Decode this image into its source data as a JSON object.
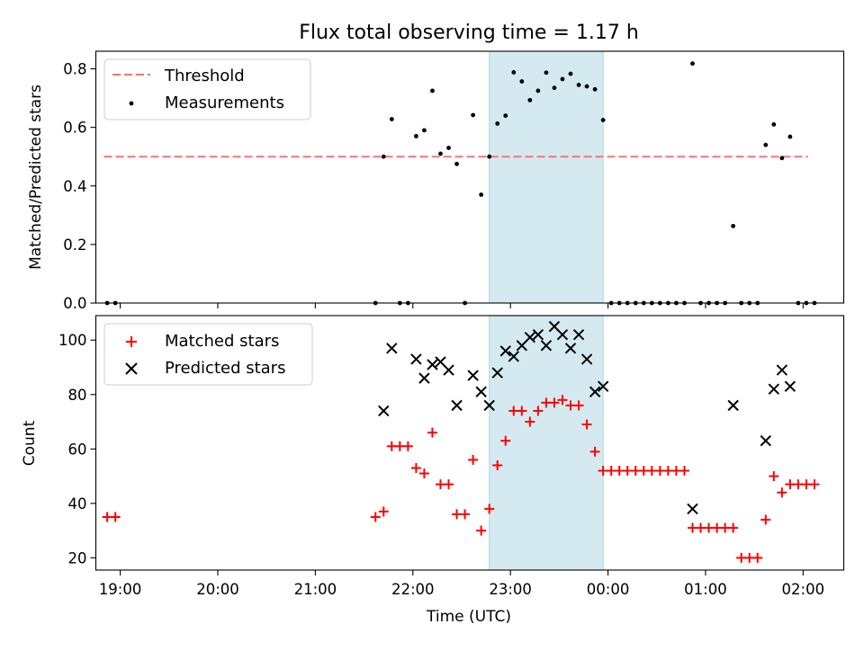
{
  "chart_data": [
    {
      "type": "scatter",
      "title": "Flux total observing time = 1.17 h",
      "xlabel": "",
      "ylabel": "Matched/Predicted stars",
      "xlim": [
        "18:45",
        "02:25"
      ],
      "ylim": [
        0,
        0.86
      ],
      "yticks": [
        "0.0",
        "0.2",
        "0.4",
        "0.6",
        "0.8"
      ],
      "legend_position": "upper-left",
      "threshold": {
        "name": "Threshold",
        "value": 0.5,
        "x_range": [
          "18:50",
          "02:03"
        ],
        "color": "#ff7070"
      },
      "highlight_span": {
        "x_range": [
          "22:47",
          "23:57"
        ],
        "color": "#d4eaf0"
      },
      "series": [
        {
          "name": "Measurements",
          "color": "#000000",
          "points": [
            [
              "18:52",
              0
            ],
            [
              "18:57",
              0
            ],
            [
              "21:37",
              0
            ],
            [
              "21:42",
              0.5
            ],
            [
              "21:47",
              0.628
            ],
            [
              "21:52",
              0
            ],
            [
              "21:57",
              0
            ],
            [
              "22:02",
              0.57
            ],
            [
              "22:07",
              0.59
            ],
            [
              "22:12",
              0.725
            ],
            [
              "22:17",
              0.51
            ],
            [
              "22:22",
              0.53
            ],
            [
              "22:27",
              0.475
            ],
            [
              "22:32",
              0
            ],
            [
              "22:37",
              0.642
            ],
            [
              "22:42",
              0.37
            ],
            [
              "22:47",
              0.5
            ],
            [
              "22:52",
              0.613
            ],
            [
              "22:57",
              0.64
            ],
            [
              "23:02",
              0.788
            ],
            [
              "23:07",
              0.757
            ],
            [
              "23:12",
              0.693
            ],
            [
              "23:17",
              0.725
            ],
            [
              "23:22",
              0.787
            ],
            [
              "23:27",
              0.735
            ],
            [
              "23:32",
              0.765
            ],
            [
              "23:37",
              0.783
            ],
            [
              "23:42",
              0.745
            ],
            [
              "23:47",
              0.74
            ],
            [
              "23:52",
              0.73
            ],
            [
              "23:57",
              0.625
            ],
            [
              "00:02",
              0
            ],
            [
              "00:07",
              0
            ],
            [
              "00:12",
              0
            ],
            [
              "00:17",
              0
            ],
            [
              "00:22",
              0
            ],
            [
              "00:27",
              0
            ],
            [
              "00:32",
              0
            ],
            [
              "00:37",
              0
            ],
            [
              "00:42",
              0
            ],
            [
              "00:47",
              0
            ],
            [
              "00:52",
              0.818
            ],
            [
              "00:57",
              0
            ],
            [
              "01:02",
              0
            ],
            [
              "01:07",
              0
            ],
            [
              "01:12",
              0
            ],
            [
              "01:17",
              0.263
            ],
            [
              "01:22",
              0
            ],
            [
              "01:27",
              0
            ],
            [
              "01:32",
              0
            ],
            [
              "01:37",
              0.54
            ],
            [
              "01:42",
              0.61
            ],
            [
              "01:47",
              0.495
            ],
            [
              "01:52",
              0.568
            ],
            [
              "01:57",
              0
            ],
            [
              "02:02",
              0
            ],
            [
              "02:07",
              0
            ]
          ]
        }
      ]
    },
    {
      "type": "scatter",
      "title": "",
      "xlabel": "Time (UTC)",
      "ylabel": "Count",
      "xlim": [
        "18:45",
        "02:25"
      ],
      "ylim": [
        15.5,
        109
      ],
      "yticks": [
        "20",
        "40",
        "60",
        "80",
        "100"
      ],
      "xticks": [
        "19:00",
        "20:00",
        "21:00",
        "22:00",
        "23:00",
        "00:00",
        "01:00",
        "02:00"
      ],
      "legend_position": "upper-left",
      "highlight_span": {
        "x_range": [
          "22:47",
          "23:57"
        ],
        "color": "#d4eaf0"
      },
      "series": [
        {
          "name": "Matched stars",
          "color": "#ff0000",
          "marker": "plus",
          "points": [
            [
              "18:52",
              35
            ],
            [
              "18:57",
              35
            ],
            [
              "21:37",
              35
            ],
            [
              "21:42",
              37
            ],
            [
              "21:47",
              61
            ],
            [
              "21:52",
              61
            ],
            [
              "21:57",
              61
            ],
            [
              "22:02",
              53
            ],
            [
              "22:07",
              51
            ],
            [
              "22:12",
              66
            ],
            [
              "22:17",
              47
            ],
            [
              "22:22",
              47
            ],
            [
              "22:27",
              36
            ],
            [
              "22:32",
              36
            ],
            [
              "22:37",
              56
            ],
            [
              "22:42",
              30
            ],
            [
              "22:47",
              38
            ],
            [
              "22:52",
              54
            ],
            [
              "22:57",
              63
            ],
            [
              "23:02",
              74
            ],
            [
              "23:07",
              74
            ],
            [
              "23:12",
              70
            ],
            [
              "23:17",
              74
            ],
            [
              "23:22",
              77
            ],
            [
              "23:27",
              77
            ],
            [
              "23:32",
              78
            ],
            [
              "23:37",
              76
            ],
            [
              "23:42",
              76
            ],
            [
              "23:47",
              69
            ],
            [
              "23:52",
              59
            ],
            [
              "23:57",
              52
            ],
            [
              "00:02",
              52
            ],
            [
              "00:07",
              52
            ],
            [
              "00:12",
              52
            ],
            [
              "00:17",
              52
            ],
            [
              "00:22",
              52
            ],
            [
              "00:27",
              52
            ],
            [
              "00:32",
              52
            ],
            [
              "00:37",
              52
            ],
            [
              "00:42",
              52
            ],
            [
              "00:47",
              52
            ],
            [
              "00:52",
              31
            ],
            [
              "00:57",
              31
            ],
            [
              "01:02",
              31
            ],
            [
              "01:07",
              31
            ],
            [
              "01:12",
              31
            ],
            [
              "01:17",
              31
            ],
            [
              "01:22",
              20
            ],
            [
              "01:27",
              20
            ],
            [
              "01:32",
              20
            ],
            [
              "01:37",
              34
            ],
            [
              "01:42",
              50
            ],
            [
              "01:47",
              44
            ],
            [
              "01:52",
              47
            ],
            [
              "01:57",
              47
            ],
            [
              "02:02",
              47
            ],
            [
              "02:07",
              47
            ]
          ]
        },
        {
          "name": "Predicted stars",
          "color": "#000000",
          "marker": "x",
          "points": [
            [
              "21:42",
              74
            ],
            [
              "21:47",
              97
            ],
            [
              "22:02",
              93
            ],
            [
              "22:07",
              86
            ],
            [
              "22:12",
              91
            ],
            [
              "22:17",
              92
            ],
            [
              "22:22",
              89
            ],
            [
              "22:27",
              76
            ],
            [
              "22:37",
              87
            ],
            [
              "22:42",
              81
            ],
            [
              "22:47",
              76
            ],
            [
              "22:52",
              88
            ],
            [
              "22:57",
              96
            ],
            [
              "23:02",
              94
            ],
            [
              "23:07",
              98
            ],
            [
              "23:12",
              101
            ],
            [
              "23:17",
              102
            ],
            [
              "23:22",
              98
            ],
            [
              "23:27",
              105
            ],
            [
              "23:32",
              102
            ],
            [
              "23:37",
              97
            ],
            [
              "23:42",
              102
            ],
            [
              "23:47",
              93
            ],
            [
              "23:52",
              81
            ],
            [
              "23:57",
              83
            ],
            [
              "00:52",
              38
            ],
            [
              "01:17",
              76
            ],
            [
              "01:37",
              63
            ],
            [
              "01:42",
              82
            ],
            [
              "01:47",
              89
            ],
            [
              "01:52",
              83
            ]
          ]
        }
      ]
    }
  ]
}
